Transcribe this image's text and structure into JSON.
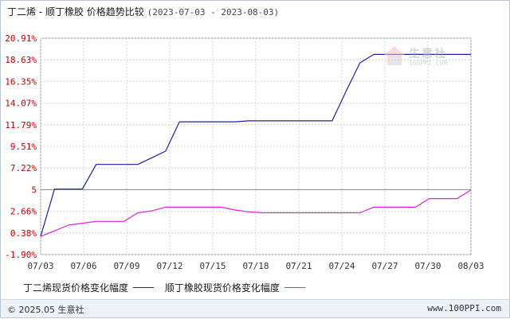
{
  "header": {
    "title": "丁二烯 - 顺丁橡胶 价格趋势比较",
    "date_range": "(2023-07-03 - 2023-08-03)"
  },
  "watermark": {
    "name": "生意社",
    "url": "100PPI.COM"
  },
  "footer": {
    "copyright": "© 2025.05 生意社",
    "site": "www.100PPI.com"
  },
  "colors": {
    "series_blue": "#1f1fa6",
    "series_magenta": "#e020e0",
    "grid": "#d4d4d4",
    "axis": "#666666",
    "tick_label_red": "#c00000"
  },
  "chart_data": {
    "type": "line",
    "x_labels": [
      "07/03",
      "07/06",
      "07/09",
      "07/12",
      "07/15",
      "07/18",
      "07/21",
      "07/24",
      "07/27",
      "07/30",
      "08/03"
    ],
    "y_tick_labels": [
      "20.91%",
      "18.63%",
      "16.35%",
      "14.07%",
      "11.79%",
      "9.51%",
      "7.22%",
      "5",
      "2.66%",
      "0.38%",
      "-1.90%"
    ],
    "y_tick_values": [
      20.91,
      18.63,
      16.35,
      14.07,
      11.79,
      9.51,
      7.22,
      4.94,
      2.66,
      0.38,
      -1.9
    ],
    "ylim": [
      -1.9,
      20.91
    ],
    "x_count": 32,
    "grid": true,
    "legend_position": "bottom",
    "series": [
      {
        "name": "丁二烯现货价格变化幅度",
        "color": "#1f1fa6",
        "values": [
          0.0,
          5.0,
          5.0,
          5.0,
          7.6,
          7.6,
          7.6,
          7.6,
          8.3,
          9.0,
          12.1,
          12.1,
          12.1,
          12.1,
          12.1,
          12.2,
          12.2,
          12.2,
          12.2,
          12.2,
          12.2,
          12.2,
          15.3,
          18.3,
          19.2,
          19.2,
          19.2,
          19.2,
          19.2,
          19.2,
          19.2,
          19.2
        ]
      },
      {
        "name": "顺丁橡胶现货价格变化幅度",
        "color": "#e020e0",
        "values": [
          0.0,
          0.6,
          1.2,
          1.4,
          1.6,
          1.6,
          1.6,
          2.5,
          2.7,
          3.1,
          3.1,
          3.1,
          3.1,
          3.1,
          2.8,
          2.6,
          2.5,
          2.5,
          2.5,
          2.5,
          2.5,
          2.5,
          2.5,
          2.5,
          3.1,
          3.1,
          3.1,
          3.1,
          4.0,
          4.0,
          4.0,
          4.9
        ]
      }
    ]
  }
}
